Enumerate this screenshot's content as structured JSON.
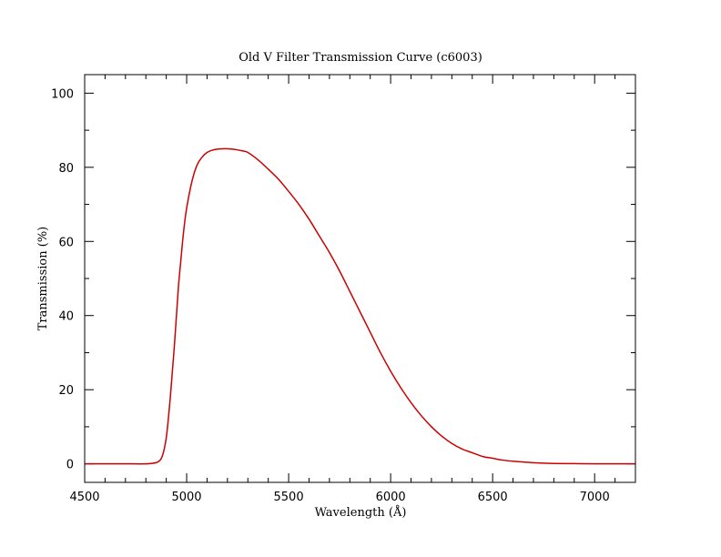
{
  "chart_data": {
    "type": "line",
    "title": "Old V Filter Transmission Curve (c6003)",
    "xlabel": "Wavelength (Å)",
    "ylabel": "Transmission (%)",
    "xlim": [
      4500,
      7200
    ],
    "ylim": [
      -5,
      105
    ],
    "x_major_ticks": [
      4500,
      5000,
      5500,
      6000,
      6500,
      7000
    ],
    "x_minor_step": 100,
    "y_major_ticks": [
      0,
      20,
      40,
      60,
      80,
      100
    ],
    "y_minor_step": 10,
    "grid": false,
    "series": [
      {
        "color": "#cc0000",
        "x": [
          4500,
          4600,
          4700,
          4800,
          4850,
          4870,
          4880,
          4890,
          4900,
          4910,
          4920,
          4930,
          4940,
          4950,
          4960,
          4970,
          4980,
          4990,
          5000,
          5025,
          5050,
          5075,
          5100,
          5125,
          5150,
          5175,
          5200,
          5225,
          5250,
          5275,
          5300,
          5350,
          5400,
          5450,
          5500,
          5550,
          5600,
          5650,
          5700,
          5750,
          5800,
          5850,
          5900,
          5950,
          6000,
          6050,
          6100,
          6150,
          6200,
          6250,
          6300,
          6350,
          6400,
          6450,
          6500,
          6550,
          6600,
          6650,
          6700,
          6750,
          6800,
          6900,
          7000,
          7100,
          7200
        ],
        "y": [
          0,
          0,
          0,
          0,
          0.3,
          1,
          2,
          4,
          7,
          12,
          18,
          25,
          32,
          40,
          48,
          54,
          60,
          65,
          69,
          76,
          80.5,
          82.7,
          84,
          84.6,
          84.9,
          85,
          85,
          84.9,
          84.7,
          84.4,
          84,
          82,
          79.5,
          76.8,
          73.5,
          70,
          66,
          61.5,
          57,
          52,
          46.5,
          41,
          35.5,
          30,
          25,
          20.5,
          16.5,
          13,
          10,
          7.5,
          5.5,
          4,
          3,
          2,
          1.5,
          1,
          0.7,
          0.5,
          0.3,
          0.2,
          0.1,
          0.05,
          0,
          0,
          0
        ]
      }
    ]
  }
}
